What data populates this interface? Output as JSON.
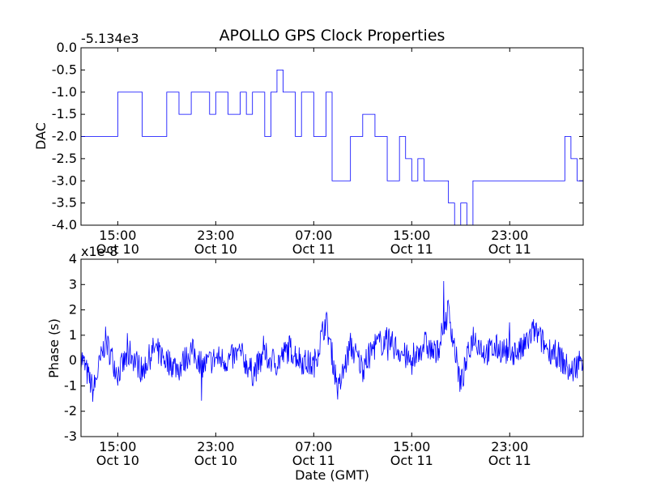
{
  "chart_data": [
    {
      "type": "line",
      "title": "APOLLO GPS Clock Properties",
      "ylabel": "DAC",
      "offset_label": "-5.134e3",
      "ylim": [
        -4.0,
        0.0
      ],
      "yticks": [
        "0.0",
        "-0.5",
        "-1.0",
        "-1.5",
        "-2.0",
        "-2.5",
        "-3.0",
        "-3.5",
        "-4.0"
      ],
      "xticks": [
        {
          "time": "15:00",
          "date": "Oct 10"
        },
        {
          "time": "23:00",
          "date": "Oct 10"
        },
        {
          "time": "07:00",
          "date": "Oct 11"
        },
        {
          "time": "15:00",
          "date": "Oct 11"
        },
        {
          "time": "23:00",
          "date": "Oct 11"
        }
      ],
      "x_hours_from_first_tick": [
        -3,
        0,
        2,
        3,
        4,
        5,
        6,
        7,
        7.5,
        8,
        9,
        10,
        10.5,
        11,
        12,
        12.5,
        13,
        13.5,
        14,
        14.5,
        15,
        16,
        17,
        17.5,
        18,
        19,
        20,
        21,
        22,
        23,
        23.5,
        24,
        24.5,
        25,
        26,
        27,
        27.5,
        28,
        28.5,
        29,
        30,
        30.5,
        31,
        31.5,
        32,
        32.5,
        33,
        33.5,
        34,
        34.5,
        35,
        35.5,
        36,
        36.5,
        37,
        37.5,
        38
      ],
      "color": "#0000ff",
      "series": [
        {
          "values": [
            -2,
            -1,
            -2,
            -2,
            -1,
            -1.5,
            -1,
            -1,
            -1.5,
            -1,
            -1.5,
            -1,
            -1.5,
            -1,
            -2,
            -1,
            -0.5,
            -1,
            -1,
            -2,
            -1,
            -2,
            -1,
            -3,
            -3,
            -2,
            -1.5,
            -2,
            -3,
            -2,
            -2.5,
            -3,
            -2.5,
            -3,
            -3,
            -3.5,
            -4,
            -3.5,
            -4,
            -3,
            -3,
            -3,
            -3,
            -3,
            -3,
            -3,
            -3,
            -3,
            -3,
            -3,
            -3,
            -3,
            -3,
            -2,
            -2.5,
            -3,
            -3
          ]
        }
      ]
    },
    {
      "type": "line",
      "ylabel": "Phase (s)",
      "xlabel": "Date (GMT)",
      "offset_label": "x1e-8",
      "ylim": [
        -3,
        4
      ],
      "yticks": [
        "4",
        "3",
        "2",
        "1",
        "0",
        "-1",
        "-2",
        "-3"
      ],
      "xticks": [
        {
          "time": "15:00",
          "date": "Oct 10"
        },
        {
          "time": "23:00",
          "date": "Oct 10"
        },
        {
          "time": "07:00",
          "date": "Oct 11"
        },
        {
          "time": "15:00",
          "date": "Oct 11"
        },
        {
          "time": "23:00",
          "date": "Oct 11"
        }
      ],
      "x_hours_from_first_tick": [
        -3,
        -2,
        -1,
        0,
        1,
        2,
        3,
        4,
        5,
        6,
        7,
        8,
        9,
        10,
        11,
        12,
        13,
        14,
        15,
        16,
        17,
        18,
        19,
        20,
        21,
        22,
        23,
        24,
        25,
        26,
        27,
        28,
        29,
        30,
        31,
        32,
        33,
        34,
        35,
        36,
        37,
        38
      ],
      "color": "#0000ff",
      "series": [
        {
          "values": [
            0.2,
            -1.2,
            0.8,
            -0.5,
            0.3,
            -0.4,
            0.5,
            0.0,
            -0.3,
            0.4,
            -0.2,
            0.1,
            0.0,
            0.3,
            -0.5,
            0.2,
            -0.1,
            0.5,
            0.0,
            -0.2,
            1.6,
            -1.2,
            0.6,
            -0.3,
            0.6,
            0.8,
            0.4,
            -0.1,
            0.7,
            0.2,
            2.0,
            -1.0,
            1.0,
            0.3,
            0.5,
            0.3,
            0.4,
            1.2,
            0.5,
            0.2,
            -0.5,
            0.2
          ]
        }
      ]
    }
  ]
}
